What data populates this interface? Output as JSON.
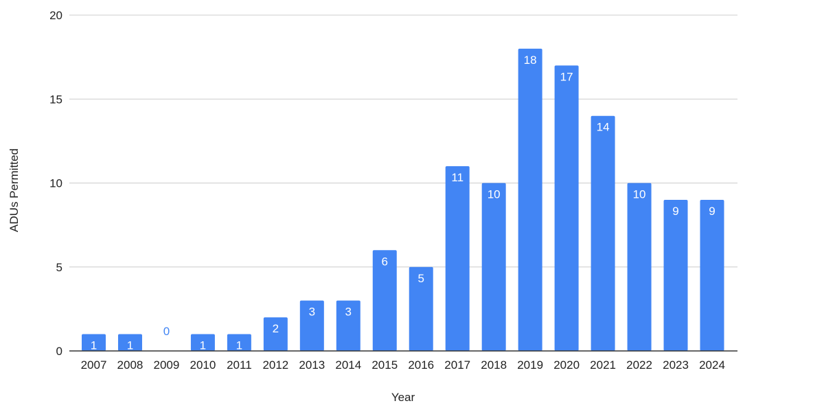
{
  "chart_data": {
    "type": "bar",
    "title": "",
    "xlabel": "Year",
    "ylabel": "ADUs Permitted",
    "categories": [
      "2007",
      "2008",
      "2009",
      "2010",
      "2011",
      "2012",
      "2013",
      "2014",
      "2015",
      "2016",
      "2017",
      "2018",
      "2019",
      "2020",
      "2021",
      "2022",
      "2023",
      "2024"
    ],
    "values": [
      1,
      1,
      0,
      1,
      1,
      2,
      3,
      3,
      6,
      5,
      11,
      10,
      18,
      17,
      14,
      10,
      9,
      9
    ],
    "data_labels": [
      "1",
      "1",
      "0",
      "1",
      "1",
      "2",
      "3",
      "3",
      "6",
      "5",
      "11",
      "10",
      "18",
      "17",
      "14",
      "10",
      "9",
      "9"
    ],
    "ylim": [
      0,
      20
    ],
    "yticks": [
      0,
      5,
      10,
      15,
      20
    ],
    "ytick_labels": [
      "0",
      "5",
      "10",
      "15",
      "20"
    ],
    "grid": true,
    "legend": "none",
    "colors": {
      "bar": "#4285f4",
      "bar_label_inside": "#ffffff",
      "bar_label_zero": "#4285f4",
      "gridline": "#cccccc",
      "baseline": "#333333",
      "text": "#222222"
    }
  }
}
